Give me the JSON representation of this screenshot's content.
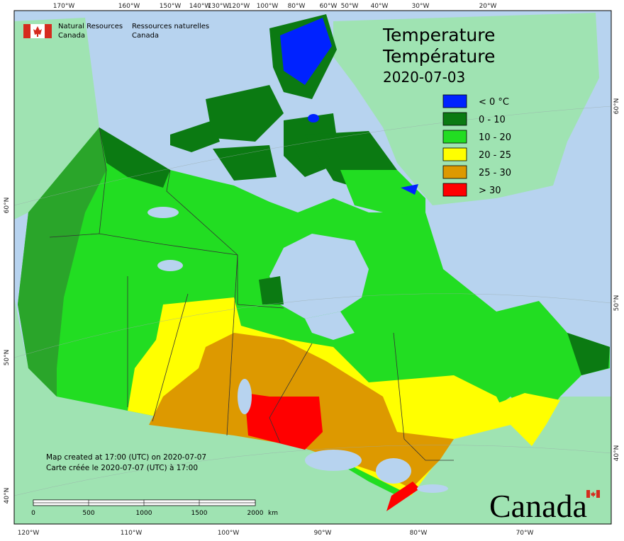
{
  "header": {
    "agency_en": [
      "Natural Resources",
      "Canada"
    ],
    "agency_fr": [
      "Ressources naturelles",
      "Canada"
    ]
  },
  "title": [
    "Temperature",
    "Température"
  ],
  "date": "2020-07-03",
  "legend": [
    {
      "label": "< 0 °C",
      "color": "#0022ff"
    },
    {
      "label": "0 - 10",
      "color": "#0b7a12"
    },
    {
      "label": "10 - 20",
      "color": "#22dd22"
    },
    {
      "label": "20 - 25",
      "color": "#ffff00"
    },
    {
      "label": "25 - 30",
      "color": "#dd9900"
    },
    {
      "label": "> 30",
      "color": "#ff0000"
    }
  ],
  "credits": [
    "Map created at 17:00 (UTC) on 2020-07-07",
    "Carte créée le 2020-07-07 (UTC) à 17:00"
  ],
  "scale_bar": {
    "labels": [
      "0",
      "500",
      "1000",
      "1500",
      "2000"
    ],
    "unit": "km"
  },
  "graticule": {
    "top": [
      "170°W",
      "160°W",
      "150°W",
      "140°W",
      "130°W",
      "120°W",
      "100°W",
      "80°W",
      "60°W",
      "50°W",
      "40°W",
      "30°W",
      "20°W"
    ],
    "bottom": [
      "120°W",
      "110°W",
      "100°W",
      "90°W",
      "80°W",
      "70°W"
    ],
    "left": [
      "60°N",
      "50°N",
      "40°N"
    ],
    "right": [
      "60°N",
      "50°N",
      "40°N"
    ]
  },
  "wordmark": "Canada"
}
